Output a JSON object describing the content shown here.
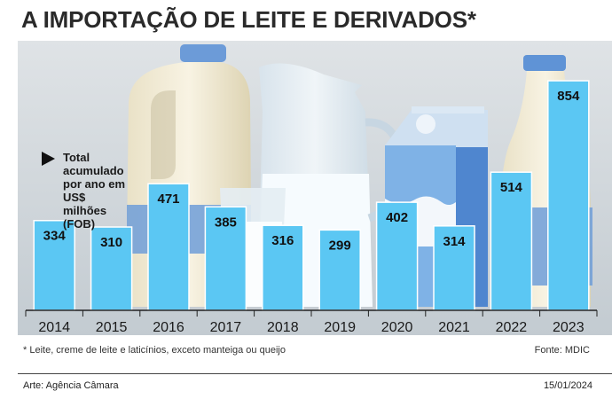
{
  "title": "A IMPORTAÇÃO DE LEITE E DERIVADOS*",
  "legend_note": "Total acumulado por ano em US$ milhões (FOB)",
  "footnote": "* Leite, creme de leite e laticínios, exceto manteiga ou queijo",
  "source": "Fonte: MDIC",
  "credit": "Arte: Agência Câmara",
  "date": "15/01/2024",
  "colors": {
    "bar": "#5bc7f3",
    "bar_border": "#ffffff",
    "value_text": "#111111",
    "axis": "#222222",
    "background_top": "#dfe3e6",
    "background_bottom": "#c3cbd1"
  },
  "chart_data": {
    "type": "bar",
    "categories": [
      "2014",
      "2015",
      "2016",
      "2017",
      "2018",
      "2019",
      "2020",
      "2021",
      "2022",
      "2023"
    ],
    "values": [
      334,
      310,
      471,
      385,
      316,
      299,
      402,
      314,
      514,
      854
    ],
    "title": "A IMPORTAÇÃO DE LEITE E DERIVADOS*",
    "xlabel": "",
    "ylabel": "Total acumulado por ano em US$ milhões (FOB)",
    "ylim": [
      0,
      950
    ],
    "data_labels": true,
    "grid": false,
    "legend": "none"
  }
}
